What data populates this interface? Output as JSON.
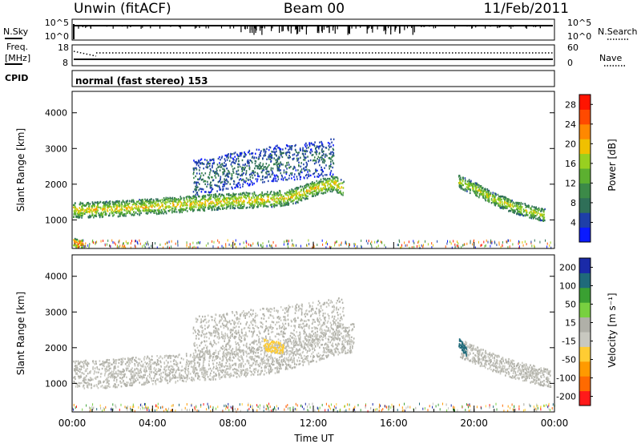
{
  "header": {
    "site_label": "Unwin (fitACF)",
    "beam_label": "Beam 00",
    "date_label": "11/Feb/2011"
  },
  "noise_panel": {
    "left_label": "N.Sky",
    "right_label": "N.Search",
    "tick_top_left": "10^5",
    "tick_bottom_left": "10^0",
    "tick_top_right": "10^5",
    "tick_bottom_right": "10^0"
  },
  "freq_panel": {
    "left_label_line1": "Freq.",
    "left_label_line2": "[MHz]",
    "right_label": "Nave",
    "left_ticks": [
      "18",
      "8"
    ],
    "right_ticks": [
      "60",
      "0"
    ]
  },
  "cpid_panel": {
    "label": "CPID",
    "value": "normal (fast stereo) 153"
  },
  "colors": {
    "power": [
      "#0a1aff",
      "#1e3fa8",
      "#2f6f58",
      "#3c8a48",
      "#5cb030",
      "#98d020",
      "#f0c000",
      "#ff8800",
      "#ff4a00",
      "#ff1400"
    ],
    "velocity": [
      "#ff1a1a",
      "#ff6a00",
      "#ff9a00",
      "#ffcc33",
      "#c8c8c0",
      "#b0b0a8",
      "#78d040",
      "#3aa032",
      "#1f6a7a",
      "#1a2aa8"
    ]
  },
  "chart_data": [
    {
      "type": "heatmap",
      "name_ref": "power",
      "xlabel": "",
      "ylabel": "Slant Range [km]",
      "y_ticks": [
        "1000",
        "2000",
        "3000",
        "4000"
      ],
      "ylim": [
        200,
        4600
      ],
      "xlim": [
        0,
        24
      ],
      "colorbar_label": "Power [dB]",
      "colorbar_ticks": [
        "4",
        "8",
        "12",
        "16",
        "20",
        "24",
        "28"
      ],
      "scale_range": [
        0,
        30
      ],
      "scatter_bands": [
        {
          "description_ref": "main",
          "points": [
            [
              0,
              1300
            ],
            [
              2,
              1330
            ],
            [
              4,
              1400
            ],
            [
              6,
              1480
            ],
            [
              8,
              1560
            ],
            [
              10,
              1600
            ],
            [
              11,
              1680
            ],
            [
              12,
              1900
            ],
            [
              13,
              2050
            ],
            [
              13.5,
              1900
            ]
          ],
          "width": 220,
          "value": 20
        },
        {
          "points": [
            [
              6,
              2200
            ],
            [
              8,
              2400
            ],
            [
              10,
              2600
            ],
            [
              12,
              2700
            ],
            [
              13,
              2800
            ]
          ],
          "width": 500,
          "value": 8
        },
        {
          "points": [
            [
              19.2,
              2100
            ],
            [
              20,
              1900
            ],
            [
              21,
              1600
            ],
            [
              22,
              1380
            ],
            [
              23.5,
              1150
            ]
          ],
          "width": 180,
          "value": 18
        },
        {
          "points": [
            [
              0,
              400
            ],
            [
              0.5,
              330
            ]
          ],
          "width": 120,
          "value": 26
        }
      ]
    },
    {
      "type": "heatmap",
      "name_ref": "velocity",
      "xlabel": "Time UT",
      "ylabel": "Slant Range [km]",
      "x_ticks": [
        "00:00",
        "04:00",
        "08:00",
        "12:00",
        "16:00",
        "20:00",
        "00:00"
      ],
      "y_ticks": [
        "1000",
        "2000",
        "3000",
        "4000"
      ],
      "ylim": [
        200,
        4600
      ],
      "xlim": [
        0,
        24
      ],
      "colorbar_label": "Velocity [m s⁻¹]",
      "colorbar_ticks": [
        "200",
        "100",
        "50",
        "15",
        "-15",
        "-50",
        "-100",
        "-200"
      ],
      "scale_range": [
        -250,
        250
      ],
      "scatter_bands": [
        {
          "points": [
            [
              0,
              1250
            ],
            [
              2,
              1300
            ],
            [
              4,
              1400
            ],
            [
              6,
              1480
            ],
            [
              8,
              1580
            ],
            [
              10,
              1700
            ],
            [
              12,
              2000
            ],
            [
              13,
              2200
            ],
            [
              14,
              2300
            ]
          ],
          "width": 400,
          "value": 0
        },
        {
          "points": [
            [
              6,
              2300
            ],
            [
              9,
              2500
            ],
            [
              12,
              2700
            ],
            [
              13.5,
              2900
            ]
          ],
          "width": 600,
          "value": 0
        },
        {
          "points": [
            [
              19.3,
              2000
            ],
            [
              20.5,
              1700
            ],
            [
              22,
              1400
            ],
            [
              23.8,
              1150
            ]
          ],
          "width": 250,
          "value": 0
        },
        {
          "points": [
            [
              9.5,
              2100
            ],
            [
              10.5,
              2000
            ]
          ],
          "width": 160,
          "value": -60
        },
        {
          "points": [
            [
              19.2,
              2200
            ],
            [
              19.6,
              1900
            ]
          ],
          "width": 140,
          "value": 180
        }
      ]
    }
  ]
}
